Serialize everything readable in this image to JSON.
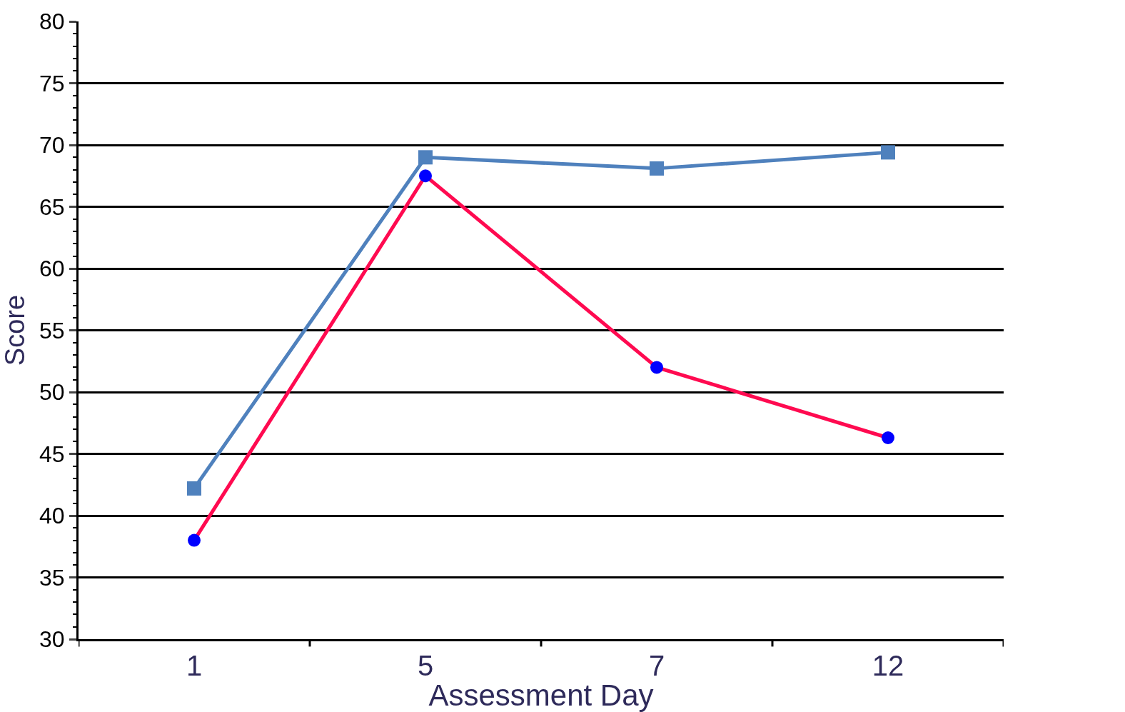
{
  "chart_data": {
    "type": "line",
    "xlabel": "Assessment Day",
    "ylabel": "Score",
    "categories": [
      "1",
      "5",
      "7",
      "12"
    ],
    "ylim": [
      30,
      80
    ],
    "yticks": [
      30,
      35,
      40,
      45,
      50,
      55,
      60,
      65,
      70,
      75,
      80
    ],
    "grid": "y",
    "series": [
      {
        "color": "#4f81bd",
        "marker": "square",
        "values": [
          42.2,
          69.0,
          68.1,
          69.4
        ]
      },
      {
        "color": "#ff0a50",
        "colors": [
          "#0000ff",
          "#0000ff",
          "#0000ff",
          "#0000ff"
        ],
        "marker": "circle",
        "values": [
          38.0,
          67.5,
          52.0,
          46.3
        ]
      }
    ]
  }
}
